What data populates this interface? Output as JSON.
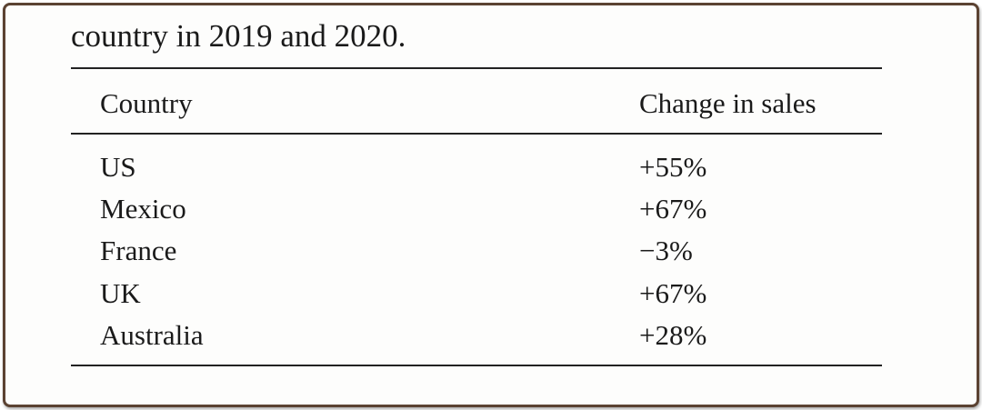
{
  "caption": "country in 2019 and 2020.",
  "table": {
    "header": [
      "Country",
      "Change in sales"
    ],
    "rows": [
      [
        "US",
        "+55%"
      ],
      [
        "Mexico",
        "+67%"
      ],
      [
        "France",
        "−3%"
      ],
      [
        "UK",
        "+67%"
      ],
      [
        "Australia",
        "+28%"
      ]
    ]
  }
}
